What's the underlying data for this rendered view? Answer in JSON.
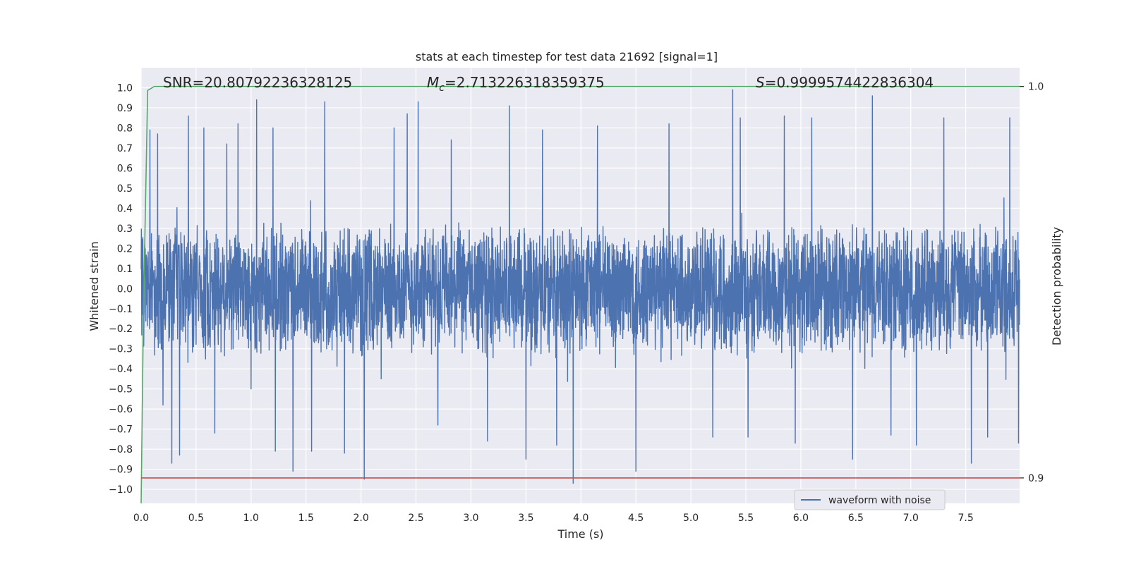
{
  "chart_data": {
    "type": "line",
    "title": "stats at each timestep for test data 21692 [signal=1]",
    "xlabel": "Time (s)",
    "ylabel": "Whitened strain",
    "y2label": "Detection probability",
    "xlim": [
      0.0,
      7.99
    ],
    "ylim": [
      -1.07,
      1.1
    ],
    "y2lim": [
      0.8935,
      1.0048
    ],
    "xticks": [
      "0.0",
      "0.5",
      "1.0",
      "1.5",
      "2.0",
      "2.5",
      "3.0",
      "3.5",
      "4.0",
      "4.5",
      "5.0",
      "5.5",
      "6.0",
      "6.5",
      "7.0",
      "7.5"
    ],
    "yticks": [
      "1.0",
      "0.9",
      "0.8",
      "0.7",
      "0.6",
      "0.5",
      "0.4",
      "0.3",
      "0.2",
      "0.1",
      "0.0",
      "−0.1",
      "−0.2",
      "−0.3",
      "−0.4",
      "−0.5",
      "−0.6",
      "−0.7",
      "−0.8",
      "−0.9",
      "−1.0"
    ],
    "y2ticks": [
      "1.0",
      "0.9"
    ],
    "grid": true,
    "legend": {
      "placement": "lower-center-right",
      "entries": [
        "waveform with noise"
      ]
    },
    "annotations": {
      "snr": "SNR=20.80792236328125",
      "mc_symbol": "M",
      "mc_sub": "c",
      "mc_value": "=2.713226318359375",
      "s_symbol": "S",
      "s_value": "=0.9999574422836304"
    },
    "series": [
      {
        "name": "waveform with noise",
        "color": "#4c72b0",
        "axis": "left",
        "kind": "noise",
        "sample_rate": 512,
        "typical_range": [
          -0.35,
          0.33
        ],
        "peaks": [
          [
            0.08,
            0.79
          ],
          [
            0.15,
            0.77
          ],
          [
            0.2,
            -0.58
          ],
          [
            0.28,
            -0.87
          ],
          [
            0.35,
            -0.83
          ],
          [
            0.43,
            0.86
          ],
          [
            0.57,
            0.8
          ],
          [
            0.67,
            -0.72
          ],
          [
            0.78,
            0.72
          ],
          [
            0.88,
            0.82
          ],
          [
            1.0,
            -0.5
          ],
          [
            1.05,
            0.94
          ],
          [
            1.2,
            0.8
          ],
          [
            1.22,
            -0.81
          ],
          [
            1.38,
            -0.91
          ],
          [
            1.55,
            -0.81
          ],
          [
            1.67,
            0.93
          ],
          [
            1.85,
            -0.82
          ],
          [
            2.03,
            -0.95
          ],
          [
            2.3,
            0.8
          ],
          [
            2.42,
            0.87
          ],
          [
            2.52,
            0.93
          ],
          [
            2.7,
            -0.68
          ],
          [
            2.82,
            0.74
          ],
          [
            3.15,
            -0.76
          ],
          [
            3.35,
            0.91
          ],
          [
            3.5,
            -0.85
          ],
          [
            3.65,
            0.79
          ],
          [
            3.78,
            -0.78
          ],
          [
            3.93,
            -0.97
          ],
          [
            4.15,
            0.81
          ],
          [
            4.5,
            -0.91
          ],
          [
            4.8,
            0.82
          ],
          [
            5.2,
            -0.74
          ],
          [
            5.38,
            0.99
          ],
          [
            5.45,
            0.85
          ],
          [
            5.52,
            -0.74
          ],
          [
            5.85,
            0.86
          ],
          [
            5.95,
            -0.77
          ],
          [
            6.1,
            0.85
          ],
          [
            6.47,
            -0.85
          ],
          [
            6.65,
            0.96
          ],
          [
            6.82,
            -0.73
          ],
          [
            7.05,
            -0.78
          ],
          [
            7.3,
            0.85
          ],
          [
            7.55,
            -0.87
          ],
          [
            7.7,
            -0.74
          ],
          [
            7.9,
            0.85
          ],
          [
            7.98,
            -0.77
          ]
        ]
      },
      {
        "name": "",
        "color": "#55a868",
        "axis": "right",
        "points": [
          [
            0.0,
            0.8935
          ],
          [
            0.02,
            0.94
          ],
          [
            0.04,
            0.97
          ],
          [
            0.06,
            0.999
          ],
          [
            0.12,
            1.0
          ],
          [
            7.99,
            1.0
          ]
        ]
      },
      {
        "name": "",
        "color": "#c44e52",
        "axis": "right",
        "points": [
          [
            0.0,
            0.9
          ],
          [
            7.99,
            0.9
          ]
        ]
      }
    ]
  }
}
